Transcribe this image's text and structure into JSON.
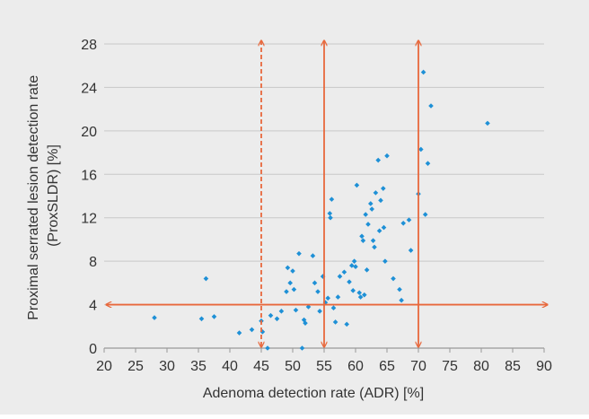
{
  "chart_data": {
    "type": "scatter",
    "title": "",
    "xlabel": "Adenoma detection rate (ADR) [%]",
    "ylabel_lines": [
      "Proximal serrated lesion detection rate",
      "(ProxSLDR) [%]"
    ],
    "xlim": [
      20,
      90
    ],
    "ylim": [
      0,
      28
    ],
    "x_ticks": [
      "20",
      "25",
      "30",
      "35",
      "40",
      "45",
      "50",
      "55",
      "60",
      "65",
      "70",
      "75",
      "80",
      "85",
      "90"
    ],
    "y_ticks": [
      "0",
      "4",
      "8",
      "12",
      "16",
      "20",
      "24",
      "28"
    ],
    "grid": true,
    "legend": "none",
    "colors": {
      "background": "#ececec",
      "grid": "#c8c8c8",
      "axis": "#999999",
      "points": "#1e90d6",
      "reference_lines": "#e8683c",
      "text": "#333333"
    },
    "reference_lines": [
      {
        "orientation": "horizontal",
        "value": 4,
        "style": "solid"
      },
      {
        "orientation": "vertical",
        "value": 45,
        "style": "dashed"
      },
      {
        "orientation": "vertical",
        "value": 55,
        "style": "solid"
      },
      {
        "orientation": "vertical",
        "value": 70,
        "style": "solid"
      }
    ],
    "points": [
      [
        28,
        2.8
      ],
      [
        35.5,
        2.7
      ],
      [
        36.2,
        6.4
      ],
      [
        37.5,
        2.9
      ],
      [
        41.5,
        1.4
      ],
      [
        43.5,
        1.7
      ],
      [
        45,
        2.5
      ],
      [
        45.2,
        1.5
      ],
      [
        46,
        0
      ],
      [
        46.5,
        3.0
      ],
      [
        47.5,
        2.7
      ],
      [
        48.2,
        3.4
      ],
      [
        49,
        5.2
      ],
      [
        49.2,
        7.4
      ],
      [
        49.6,
        6.0
      ],
      [
        50,
        7.1
      ],
      [
        50.2,
        5.4
      ],
      [
        50.5,
        3.5
      ],
      [
        51,
        8.7
      ],
      [
        51.5,
        0
      ],
      [
        51.8,
        2.6
      ],
      [
        52,
        2.3
      ],
      [
        52.5,
        3.8
      ],
      [
        53.2,
        8.5
      ],
      [
        53.5,
        6.0
      ],
      [
        54,
        5.2
      ],
      [
        54.3,
        3.4
      ],
      [
        54.8,
        6.6
      ],
      [
        55.2,
        4.2
      ],
      [
        55.6,
        4.6
      ],
      [
        55.9,
        12.4
      ],
      [
        56,
        12.0
      ],
      [
        56.2,
        13.7
      ],
      [
        56.5,
        3.7
      ],
      [
        56.8,
        2.4
      ],
      [
        57.2,
        4.7
      ],
      [
        57.5,
        6.6
      ],
      [
        58.2,
        7.0
      ],
      [
        58.6,
        2.2
      ],
      [
        59,
        6.1
      ],
      [
        59.4,
        7.6
      ],
      [
        59.6,
        5.3
      ],
      [
        59.8,
        8.0
      ],
      [
        60,
        7.5
      ],
      [
        60.2,
        15.0
      ],
      [
        60.6,
        5.1
      ],
      [
        60.8,
        4.7
      ],
      [
        61,
        10.3
      ],
      [
        61.2,
        9.9
      ],
      [
        61.4,
        4.9
      ],
      [
        61.6,
        12.3
      ],
      [
        61.8,
        7.2
      ],
      [
        62,
        11.4
      ],
      [
        62.4,
        13.3
      ],
      [
        62.6,
        12.8
      ],
      [
        62.8,
        9.9
      ],
      [
        63,
        9.3
      ],
      [
        63.2,
        14.3
      ],
      [
        63.6,
        17.3
      ],
      [
        63.8,
        10.8
      ],
      [
        64,
        13.6
      ],
      [
        64.4,
        14.7
      ],
      [
        64.5,
        11.1
      ],
      [
        64.7,
        8.0
      ],
      [
        65,
        17.7
      ],
      [
        66,
        6.4
      ],
      [
        67,
        5.4
      ],
      [
        67.3,
        4.4
      ],
      [
        67.6,
        11.5
      ],
      [
        68.5,
        11.8
      ],
      [
        68.8,
        9.0
      ],
      [
        70,
        14.2
      ],
      [
        70.4,
        18.3
      ],
      [
        70.8,
        25.4
      ],
      [
        71.1,
        12.3
      ],
      [
        71.5,
        17.0
      ],
      [
        72,
        22.3
      ],
      [
        81,
        20.7
      ]
    ]
  }
}
